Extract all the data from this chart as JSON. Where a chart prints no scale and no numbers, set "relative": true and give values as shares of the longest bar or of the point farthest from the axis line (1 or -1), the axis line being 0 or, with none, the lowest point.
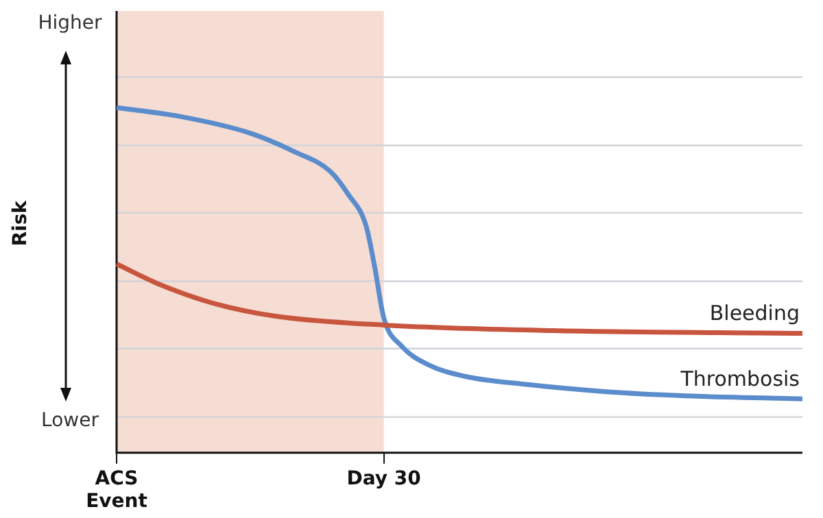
{
  "chart_data": {
    "type": "line",
    "relative": true,
    "ylabel": "Risk",
    "annotations": [
      "Higher",
      "Lower"
    ],
    "categories": [
      "ACS Event",
      null,
      null,
      null,
      null,
      null,
      null,
      null,
      null,
      null,
      null,
      null,
      null,
      null,
      null,
      null,
      null,
      null,
      null,
      null,
      null,
      null,
      null,
      null,
      null,
      null,
      null,
      null,
      null,
      null,
      "Day 30",
      null,
      null,
      null,
      null,
      null,
      null,
      null,
      null,
      null,
      null,
      null,
      null,
      null,
      null,
      null,
      null,
      null,
      null,
      null,
      null,
      null,
      null,
      null,
      null,
      null,
      null,
      null,
      null,
      null,
      null,
      null,
      null,
      null,
      null,
      null,
      null,
      null,
      null,
      null,
      null,
      null,
      null,
      null,
      null,
      null,
      null,
      null
    ],
    "tick_labels": "x",
    "legend": false,
    "marker": "none",
    "line_style": "solid",
    "bands": [
      {
        "axis": "x",
        "from": "ACS Event",
        "to": "Day 30",
        "color": "#f5ddd3"
      }
    ],
    "series": [
      {
        "name": "Bleeding",
        "color": "#c8553d",
        "values": [
          0.547,
          null,
          null,
          null,
          null,
          0.486,
          null,
          null,
          null,
          null,
          null,
          0.432,
          null,
          null,
          null,
          null,
          null,
          null,
          0.395,
          null,
          null,
          null,
          null,
          null,
          null,
          null,
          null,
          null,
          null,
          null,
          0.37,
          null,
          null,
          null,
          null,
          null,
          null,
          null,
          null,
          null,
          null,
          null,
          null,
          null,
          null,
          null,
          null,
          null,
          null,
          0.354,
          null,
          null,
          null,
          null,
          null,
          null,
          null,
          null,
          null,
          null,
          null,
          null,
          null,
          null,
          null,
          null,
          null,
          null,
          null,
          null,
          null,
          null,
          null,
          null,
          null,
          null,
          null,
          0.346
        ]
      },
      {
        "name": "Thrombosis",
        "color": "#5b8ccc",
        "values": [
          1,
          null,
          null,
          null,
          null,
          null,
          null,
          0.975,
          null,
          null,
          null,
          null,
          null,
          null,
          null,
          0.926,
          null,
          null,
          null,
          null,
          0.872,
          null,
          null,
          null,
          0.815,
          null,
          0.749,
          null,
          0.658,
          0.535,
          0.391,
          null,
          0.309,
          null,
          null,
          0.255,
          null,
          null,
          null,
          0.222,
          null,
          null,
          null,
          null,
          null,
          null,
          0.198,
          null,
          null,
          null,
          null,
          null,
          null,
          null,
          null,
          0.177,
          null,
          null,
          null,
          null,
          null,
          null,
          null,
          null,
          0.165,
          null,
          null,
          null,
          null,
          null,
          null,
          null,
          null,
          null,
          null,
          null,
          null,
          0.156
        ]
      }
    ]
  }
}
